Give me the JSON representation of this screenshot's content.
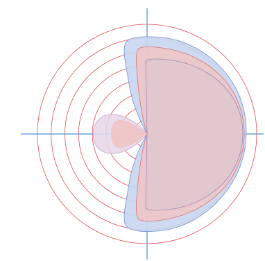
{
  "diagram": {
    "type": "polar-plot",
    "rings": {
      "count": 8,
      "color": "#e8474f"
    },
    "axes_color": "#4a90d9",
    "series": [
      {
        "fill": "#c8d6ef",
        "stroke": "#6f8fd0",
        "opacity": 0.9
      },
      {
        "fill": "#efc4c4",
        "stroke": "#d77575",
        "opacity": 0.85
      },
      {
        "fill": "#dcc8cf",
        "stroke": "#9d84b8",
        "opacity": 0.7
      },
      {
        "fill": "#e6d6e8",
        "stroke": "#c8a8cc",
        "opacity": 0.85
      },
      {
        "fill": "#f0c4c4",
        "stroke": "none",
        "opacity": 0.9
      }
    ]
  }
}
